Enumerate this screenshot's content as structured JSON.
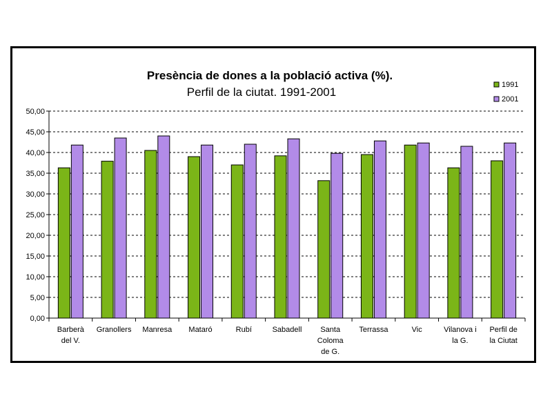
{
  "chart_data": {
    "type": "bar",
    "title": "Presència de dones a la població activa (%).",
    "subtitle": "Perfil de la ciutat. 1991-2001",
    "categories": [
      [
        "Barberà",
        "del V."
      ],
      [
        "Granollers"
      ],
      [
        "Manresa"
      ],
      [
        "Mataró"
      ],
      [
        "Rubí"
      ],
      [
        "Sabadell"
      ],
      [
        "Santa",
        "Coloma",
        "de G."
      ],
      [
        "Terrassa"
      ],
      [
        "Vic"
      ],
      [
        "Vilanova i",
        "la G."
      ],
      [
        "Perfil de",
        "la Ciutat"
      ]
    ],
    "series": [
      {
        "name": "1991",
        "color": "#7BB518",
        "values": [
          36.3,
          37.9,
          40.5,
          39.0,
          37.0,
          39.2,
          33.2,
          39.5,
          41.8,
          36.3,
          38.0
        ]
      },
      {
        "name": "2001",
        "color": "#B28BE8",
        "values": [
          41.8,
          43.5,
          44.0,
          41.8,
          42.0,
          43.3,
          39.8,
          42.8,
          42.3,
          41.5,
          42.3
        ]
      }
    ],
    "ylim": [
      0,
      50
    ],
    "yticks": [
      "0,00",
      "5,00",
      "10,00",
      "15,00",
      "20,00",
      "25,00",
      "30,00",
      "35,00",
      "40,00",
      "45,00",
      "50,00"
    ],
    "grid": "horizontal dashed",
    "legend_position": "top-right"
  }
}
